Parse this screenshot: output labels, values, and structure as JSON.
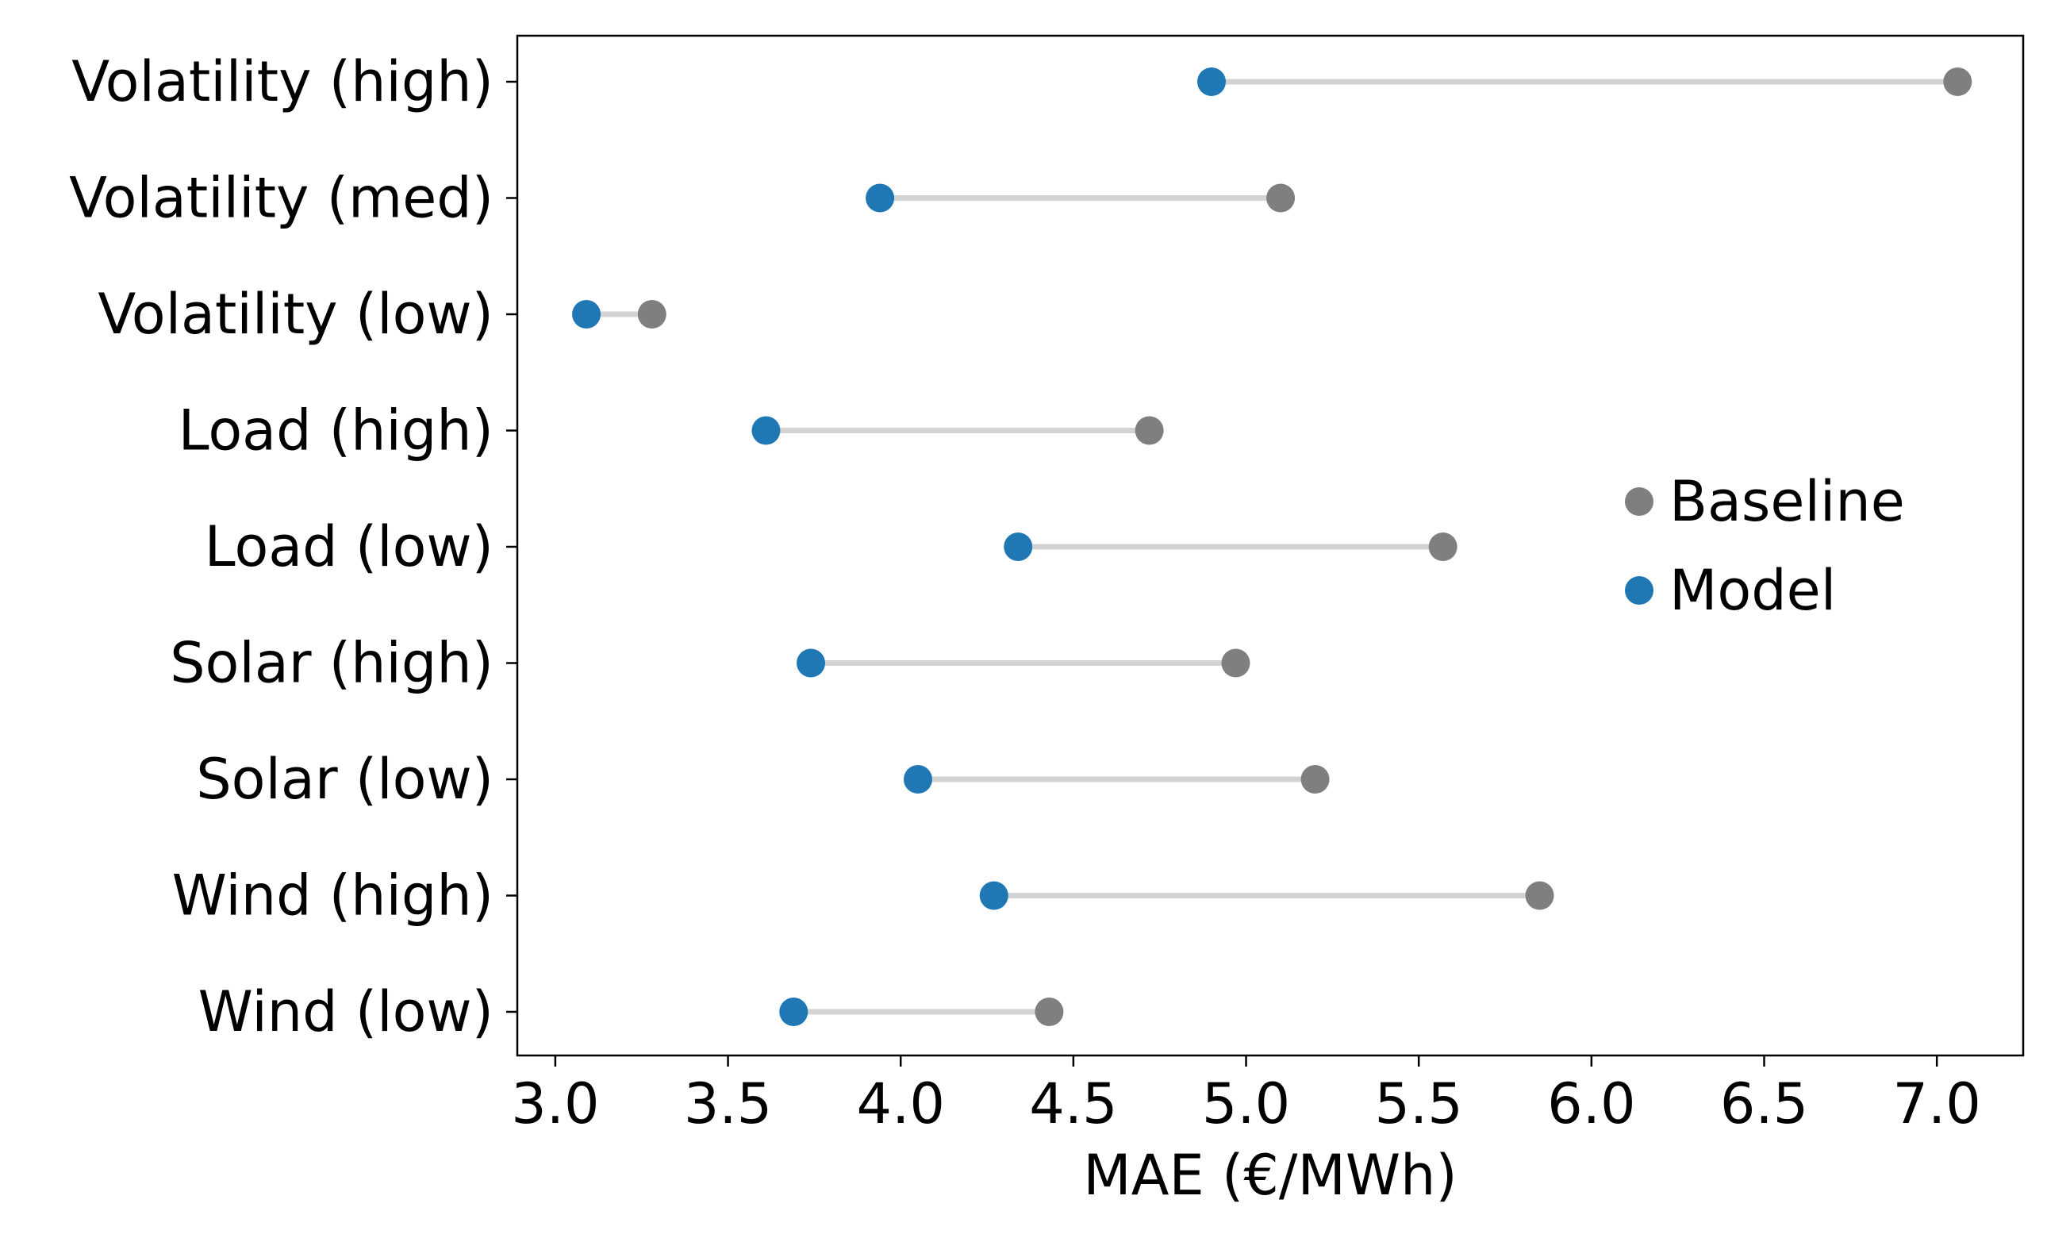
{
  "chart_data": {
    "type": "dumbbell",
    "title": "",
    "xlabel": "MAE (€/MWh)",
    "ylabel": "",
    "xlim": [
      2.89,
      7.25
    ],
    "xticks": [
      3.0,
      3.5,
      4.0,
      4.5,
      5.0,
      5.5,
      6.0,
      6.5,
      7.0
    ],
    "xtick_labels": [
      "3.0",
      "3.5",
      "4.0",
      "4.5",
      "5.0",
      "5.5",
      "6.0",
      "6.5",
      "7.0"
    ],
    "grid": false,
    "legend_position": "center-right",
    "categories": [
      "Volatility (high)",
      "Volatility (med)",
      "Volatility (low)",
      "Load (high)",
      "Load (low)",
      "Solar (high)",
      "Solar (low)",
      "Wind (high)",
      "Wind (low)"
    ],
    "series": [
      {
        "name": "Baseline",
        "color": "#7f7f7f",
        "values": [
          7.06,
          5.1,
          3.28,
          4.72,
          5.57,
          4.97,
          5.2,
          5.85,
          4.43
        ]
      },
      {
        "name": "Model",
        "color": "#1f77b4",
        "values": [
          4.9,
          3.94,
          3.09,
          3.61,
          4.34,
          3.74,
          4.05,
          4.27,
          3.69
        ]
      }
    ],
    "connector_color": "#d3d3d3"
  }
}
